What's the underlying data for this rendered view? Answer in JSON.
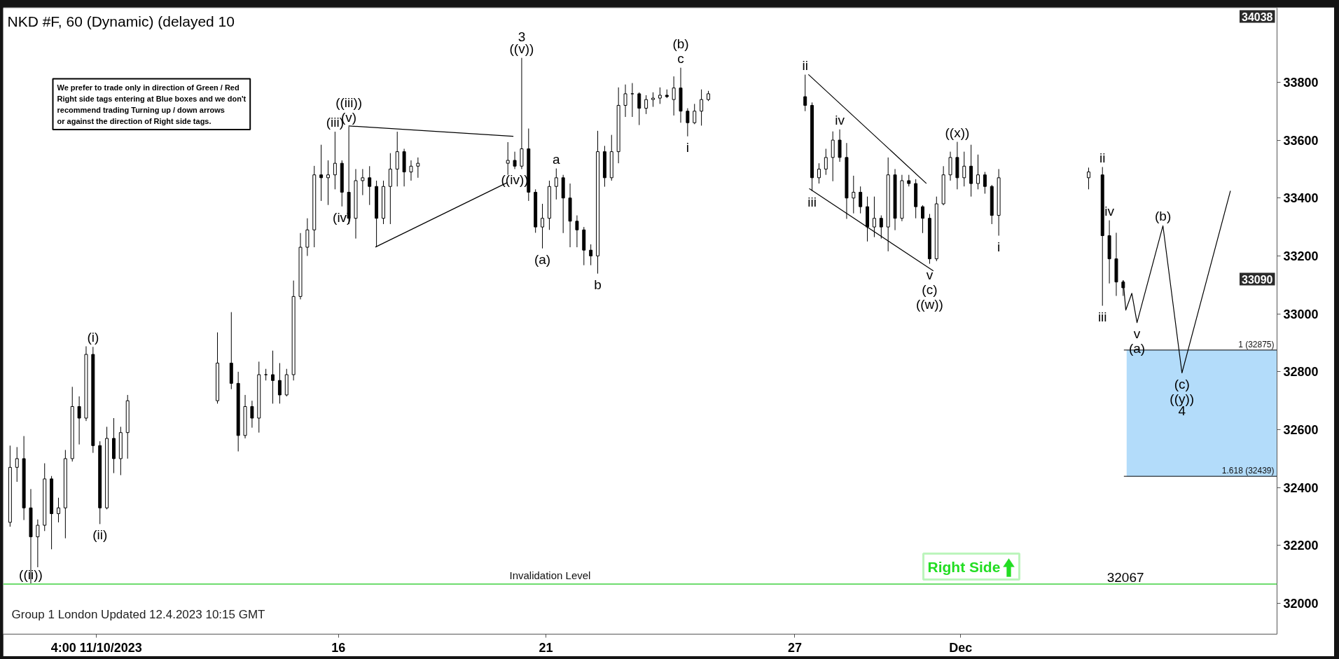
{
  "chart_data": {
    "type": "candlestick",
    "title": "NKD #F, 60 (Dynamic) (delayed 10",
    "color": "#000000",
    "x": [
      "2023-11-08T02:00",
      "2023-11-08T06:00",
      "2023-11-08T10:00",
      "2023-11-08T14:00",
      "2023-11-08T18:00",
      "2023-11-08T22:00",
      "2023-11-09T02:00",
      "2023-11-09T06:00",
      "2023-11-09T10:00",
      "2023-11-09T14:00",
      "2023-11-09T18:00",
      "2023-11-09T22:00",
      "2023-11-10T02:00",
      "2023-11-10T06:00",
      "2023-11-10T10:00",
      "2023-11-10T14:00",
      "2023-11-10T18:00",
      "2023-11-10T22:00",
      "2023-11-13T02:00",
      "2023-11-13T10:00",
      "2023-11-13T14:00",
      "2023-11-13T18:00",
      "2023-11-13T22:00",
      "2023-11-14T02:00",
      "2023-11-14T06:00",
      "2023-11-14T10:00",
      "2023-11-14T14:00",
      "2023-11-14T18:00",
      "2023-11-14T22:00",
      "2023-11-15T02:00",
      "2023-11-15T06:00",
      "2023-11-15T10:00",
      "2023-11-15T14:00",
      "2023-11-15T18:00",
      "2023-11-15T22:00",
      "2023-11-16T02:00",
      "2023-11-16T06:00",
      "2023-11-16T10:00",
      "2023-11-16T14:00",
      "2023-11-16T18:00",
      "2023-11-16T22:00",
      "2023-11-17T02:00",
      "2023-11-17T06:00",
      "2023-11-17T10:00",
      "2023-11-17T14:00",
      "2023-11-17T18:00",
      "2023-11-17T22:00",
      "2023-11-20T02:00",
      "2023-11-20T06:00",
      "2023-11-20T10:00",
      "2023-11-20T14:00",
      "2023-11-20T18:00",
      "2023-11-20T22:00",
      "2023-11-21T02:00",
      "2023-11-21T06:00",
      "2023-11-21T10:00",
      "2023-11-21T14:00",
      "2023-11-21T18:00",
      "2023-11-21T22:00",
      "2023-11-22T02:00",
      "2023-11-22T06:00",
      "2023-11-22T10:00",
      "2023-11-22T14:00",
      "2023-11-22T18:00",
      "2023-11-22T22:00",
      "2023-11-23T02:00",
      "2023-11-23T06:00",
      "2023-11-23T10:00",
      "2023-11-23T14:00",
      "2023-11-23T18:00",
      "2023-11-23T22:00",
      "2023-11-24T02:00",
      "2023-11-24T06:00",
      "2023-11-24T10:00",
      "2023-11-24T14:00",
      "2023-11-24T18:00",
      "2023-11-24T22:00",
      "2023-11-27T06:00",
      "2023-11-27T10:00",
      "2023-11-27T14:00",
      "2023-11-27T18:00",
      "2023-11-27T22:00",
      "2023-11-28T02:00",
      "2023-11-28T06:00",
      "2023-11-28T10:00",
      "2023-11-28T14:00",
      "2023-11-28T18:00",
      "2023-11-28T22:00",
      "2023-11-29T02:00",
      "2023-11-29T06:00",
      "2023-11-29T10:00",
      "2023-11-29T14:00",
      "2023-11-29T18:00",
      "2023-11-29T22:00",
      "2023-11-30T02:00",
      "2023-11-30T06:00",
      "2023-11-30T10:00",
      "2023-11-30T14:00",
      "2023-11-30T18:00",
      "2023-11-30T22:00",
      "2023-12-01T02:00",
      "2023-12-01T06:00",
      "2023-12-01T10:00",
      "2023-12-01T14:00",
      "2023-12-01T18:00",
      "2023-12-01T22:00",
      "2023-12-04T02:00",
      "2023-12-04T10:00",
      "2023-12-04T14:00",
      "2023-12-04T18:00",
      "2023-12-04T22:00"
    ],
    "ohlc": [
      [
        32280,
        32545,
        32265,
        32470
      ],
      [
        32470,
        32540,
        32420,
        32500
      ],
      [
        32500,
        32578,
        32288,
        32330
      ],
      [
        32330,
        32395,
        32067,
        32230
      ],
      [
        32230,
        32290,
        32125,
        32270
      ],
      [
        32270,
        32484,
        32250,
        32430
      ],
      [
        32430,
        32440,
        32187,
        32310
      ],
      [
        32310,
        32365,
        32280,
        32330
      ],
      [
        32330,
        32530,
        32225,
        32500
      ],
      [
        32500,
        32748,
        32490,
        32680
      ],
      [
        32680,
        32715,
        32549,
        32640
      ],
      [
        32640,
        32888,
        32630,
        32860
      ],
      [
        32860,
        32886,
        32520,
        32545
      ],
      [
        32545,
        32560,
        32274,
        32330
      ],
      [
        32330,
        32610,
        32325,
        32570
      ],
      [
        32570,
        32640,
        32450,
        32500
      ],
      [
        32500,
        32610,
        32443,
        32590
      ],
      [
        32590,
        32720,
        32500,
        32700
      ],
      [
        32700,
        32936,
        32690,
        32830
      ],
      [
        32830,
        33006,
        32740,
        32760
      ],
      [
        32760,
        32800,
        32525,
        32580
      ],
      [
        32580,
        32720,
        32570,
        32680
      ],
      [
        32680,
        32700,
        32607,
        32640
      ],
      [
        32640,
        32835,
        32590,
        32790
      ],
      [
        32790,
        32810,
        32770,
        32790
      ],
      [
        32790,
        32873,
        32690,
        32770
      ],
      [
        32770,
        32830,
        32690,
        32720
      ],
      [
        32720,
        32810,
        32715,
        32790
      ],
      [
        32790,
        33115,
        32770,
        33060
      ],
      [
        33060,
        33279,
        33050,
        33230
      ],
      [
        33230,
        33330,
        33200,
        33290
      ],
      [
        33290,
        33511,
        33230,
        33480
      ],
      [
        33480,
        33584,
        33390,
        33470
      ],
      [
        33470,
        33530,
        33376,
        33480
      ],
      [
        33480,
        33629,
        33430,
        33520
      ],
      [
        33520,
        33530,
        33371,
        33420
      ],
      [
        33420,
        33647,
        33310,
        33330
      ],
      [
        33330,
        33500,
        33260,
        33460
      ],
      [
        33460,
        33500,
        33410,
        33470
      ],
      [
        33470,
        33510,
        33376,
        33440
      ],
      [
        33440,
        33460,
        33231,
        33330
      ],
      [
        33330,
        33460,
        33310,
        33440
      ],
      [
        33440,
        33555,
        33310,
        33500
      ],
      [
        33500,
        33629,
        33440,
        33560
      ],
      [
        33560,
        33570,
        33440,
        33490
      ],
      [
        33490,
        33530,
        33460,
        33510
      ],
      [
        33510,
        33540,
        33470,
        33520
      ],
      [
        33520,
        33593,
        33480,
        33530
      ],
      [
        33530,
        33560,
        33500,
        33510
      ],
      [
        33510,
        33884,
        33500,
        33570
      ],
      [
        33570,
        33640,
        33390,
        33420
      ],
      [
        33420,
        33430,
        33280,
        33300
      ],
      [
        33300,
        33380,
        33226,
        33330
      ],
      [
        33330,
        33460,
        33290,
        33440
      ],
      [
        33440,
        33502,
        33395,
        33470
      ],
      [
        33470,
        33480,
        33279,
        33400
      ],
      [
        33400,
        33450,
        33230,
        33320
      ],
      [
        33320,
        33340,
        33230,
        33290
      ],
      [
        33290,
        33300,
        33168,
        33220
      ],
      [
        33220,
        33240,
        33168,
        33200
      ],
      [
        33200,
        33632,
        33139,
        33560
      ],
      [
        33560,
        33580,
        33439,
        33470
      ],
      [
        33470,
        33618,
        33460,
        33560
      ],
      [
        33560,
        33782,
        33520,
        33720
      ],
      [
        33720,
        33792,
        33680,
        33760
      ],
      [
        33760,
        33797,
        33680,
        33760
      ],
      [
        33760,
        33765,
        33652,
        33710
      ],
      [
        33710,
        33755,
        33690,
        33740
      ],
      [
        33740,
        33765,
        33715,
        33745
      ],
      [
        33745,
        33782,
        33725,
        33755
      ],
      [
        33755,
        33775,
        33745,
        33750
      ],
      [
        33740,
        33820,
        33685,
        33780
      ],
      [
        33780,
        33850,
        33660,
        33700
      ],
      [
        33700,
        33710,
        33613,
        33660
      ],
      [
        33660,
        33725,
        33655,
        33700
      ],
      [
        33700,
        33775,
        33650,
        33740
      ],
      [
        33740,
        33770,
        33735,
        33760
      ],
      [
        33750,
        33826,
        33700,
        33720
      ],
      [
        33720,
        33730,
        33424,
        33470
      ],
      [
        33470,
        33520,
        33450,
        33500
      ],
      [
        33500,
        33570,
        33480,
        33540
      ],
      [
        33540,
        33630,
        33458,
        33600
      ],
      [
        33600,
        33637,
        33525,
        33540
      ],
      [
        33540,
        33590,
        33328,
        33400
      ],
      [
        33400,
        33477,
        33347,
        33420
      ],
      [
        33420,
        33440,
        33347,
        33370
      ],
      [
        33370,
        33405,
        33250,
        33300
      ],
      [
        33300,
        33405,
        33265,
        33330
      ],
      [
        33330,
        33340,
        33260,
        33300
      ],
      [
        33300,
        33540,
        33216,
        33480
      ],
      [
        33480,
        33500,
        33289,
        33330
      ],
      [
        33330,
        33480,
        33320,
        33460
      ],
      [
        33460,
        33480,
        33440,
        33450
      ],
      [
        33450,
        33465,
        33330,
        33370
      ],
      [
        33370,
        33375,
        33279,
        33330
      ],
      [
        33330,
        33345,
        33173,
        33190
      ],
      [
        33190,
        33405,
        33182,
        33380
      ],
      [
        33380,
        33510,
        33375,
        33480
      ],
      [
        33480,
        33560,
        33460,
        33540
      ],
      [
        33540,
        33594,
        33430,
        33470
      ],
      [
        33470,
        33560,
        33440,
        33510
      ],
      [
        33510,
        33584,
        33405,
        33450
      ],
      [
        33450,
        33550,
        33430,
        33480
      ],
      [
        33480,
        33490,
        33415,
        33440
      ],
      [
        33440,
        33445,
        33310,
        33340
      ],
      [
        33340,
        33500,
        33270,
        33470
      ],
      [
        33470,
        33505,
        33430,
        33490
      ],
      [
        33480,
        33507,
        33028,
        33270
      ],
      [
        33270,
        33323,
        33105,
        33190
      ],
      [
        33190,
        33280,
        33062,
        33110
      ],
      [
        33110,
        33115,
        33062,
        33090
      ]
    ],
    "series": [
      {
        "type": "line",
        "color": "#000000",
        "x": [
          "2023-11-16T06:00",
          "2023-11-20T05:00"
        ],
        "values": [
          33649,
          33613
        ]
      },
      {
        "type": "line",
        "color": "#000000",
        "x": [
          "2023-11-16T21:30",
          "2023-11-20T01:30"
        ],
        "values": [
          33231,
          33453
        ]
      },
      {
        "type": "line",
        "color": "#000000",
        "x": [
          "2023-11-27T08:00",
          "2023-11-30T04:00"
        ],
        "values": [
          33826,
          33451
        ]
      },
      {
        "type": "line",
        "color": "#000000",
        "x": [
          "2023-11-27T08:30",
          "2023-11-30T08:00"
        ],
        "values": [
          33432,
          33149
        ]
      },
      {
        "type": "line",
        "color": "#000000",
        "x": [
          "2023-12-04T22:00",
          "2023-12-04T23:30",
          "2023-12-05T03:00",
          "2023-12-05T06:00",
          "2023-12-05T21:00",
          "2023-12-06T08:00",
          "2023-12-07T12:00"
        ],
        "values": [
          33115,
          33013,
          33071,
          32970,
          33304,
          32796,
          33424
        ]
      }
    ],
    "xlim": [
      "2023-11-07T22:00",
      "2023-12-08T15:00"
    ],
    "xticks": [
      {
        "value": "2023-11-10T04:00",
        "label": "4:00 11/10/2023"
      },
      {
        "value": "2023-11-16",
        "label": "16"
      },
      {
        "value": "2023-11-21",
        "label": "21"
      },
      {
        "value": "2023-11-27",
        "label": "27"
      },
      {
        "value": "2023-12-01",
        "label": "Dec"
      }
    ],
    "ylim": [
      31894,
      34056
    ],
    "yticks": [
      32000,
      32200,
      32400,
      32600,
      32800,
      33000,
      33200,
      33400,
      33600,
      33800
    ],
    "bands": [
      {
        "axis": "y",
        "from": 32439,
        "to": 32875,
        "color": "#b3dcfa"
      }
    ],
    "ref_lines": [
      {
        "axis": "y",
        "value": 32875,
        "label": "1 (32875)",
        "color": "#000000"
      },
      {
        "axis": "y",
        "value": 32439,
        "label": "1.618 (32439)",
        "color": "#000000"
      },
      {
        "axis": "y",
        "value": 32067,
        "label": "Invalidation Level",
        "color": "#6fdc6f"
      }
    ],
    "annotations": [
      "We prefer to trade only in direction of Green / Red\nRight side tags entering at Blue boxes and we don't\nrecommend trading Turning up / down arrows\nor against the direction of Right side tags.",
      "Group 1 London Updated 12.4.2023 10:15 GMT",
      "Right Side",
      "34038",
      "33090",
      {
        "text": "32067",
        "x": "2023-12-04T23:20",
        "y": 32067
      },
      {
        "text": "((ii))",
        "x": "2023-11-08T14:00",
        "y": 32067
      },
      {
        "text": "(i)",
        "x": "2023-11-10T02:00",
        "y": 32886
      },
      {
        "text": "(ii)",
        "x": "2023-11-10T06:00",
        "y": 32274
      },
      {
        "text": "(iii)",
        "x": "2023-11-15T22:00",
        "y": 33629
      },
      {
        "text": "(iv)",
        "x": "2023-11-16T02:00",
        "y": 33371
      },
      {
        "text": "(v)",
        "x": "2023-11-16T06:00",
        "y": 33647
      },
      {
        "text": "((iii))",
        "x": "2023-11-16T06:00",
        "y": 33647
      },
      {
        "text": "((iv))",
        "x": "2023-11-20T06:00",
        "y": 33500
      },
      {
        "text": "((v))",
        "x": "2023-11-20T10:00",
        "y": 33884
      },
      {
        "text": "3",
        "x": "2023-11-20T10:00",
        "y": 33884
      },
      {
        "text": "(a)",
        "x": "2023-11-20T22:00",
        "y": 33226
      },
      {
        "text": "a",
        "x": "2023-11-21T06:00",
        "y": 33502
      },
      {
        "text": "b",
        "x": "2023-11-22T06:00",
        "y": 33139
      },
      {
        "text": "c",
        "x": "2023-11-24T06:00",
        "y": 33850
      },
      {
        "text": "(b)",
        "x": "2023-11-24T06:00",
        "y": 33850
      },
      {
        "text": "i",
        "x": "2023-11-24T10:00",
        "y": 33613
      },
      {
        "text": "ii",
        "x": "2023-11-27T06:00",
        "y": 33826
      },
      {
        "text": "iii",
        "x": "2023-11-27T10:00",
        "y": 33424
      },
      {
        "text": "iv",
        "x": "2023-11-28T02:00",
        "y": 33637
      },
      {
        "text": "v",
        "x": "2023-11-30T06:00",
        "y": 33173
      },
      {
        "text": "(c)",
        "x": "2023-11-30T06:00",
        "y": 33173
      },
      {
        "text": "((w))",
        "x": "2023-11-30T06:00",
        "y": 33173
      },
      {
        "text": "((x))",
        "x": "2023-11-30T22:00",
        "y": 33594
      },
      {
        "text": "i",
        "x": "2023-12-01T22:00",
        "y": 33270
      },
      {
        "text": "ii",
        "x": "2023-12-04T10:00",
        "y": 33507
      },
      {
        "text": "iii",
        "x": "2023-12-04T10:00",
        "y": 33028
      },
      {
        "text": "iv",
        "x": "2023-12-04T14:00",
        "y": 33323
      },
      {
        "text": "v",
        "x": "2023-12-05T06:00",
        "y": 32970
      },
      {
        "text": "(a)",
        "x": "2023-12-05T06:00",
        "y": 32970
      },
      {
        "text": "(b)",
        "x": "2023-12-05T21:00",
        "y": 33304
      },
      {
        "text": "(c)",
        "x": "2023-12-06T08:00",
        "y": 32796
      },
      {
        "text": "((y))",
        "x": "2023-12-06T08:00",
        "y": 32796
      },
      {
        "text": "4",
        "x": "2023-12-06T08:00",
        "y": 32796
      }
    ]
  }
}
